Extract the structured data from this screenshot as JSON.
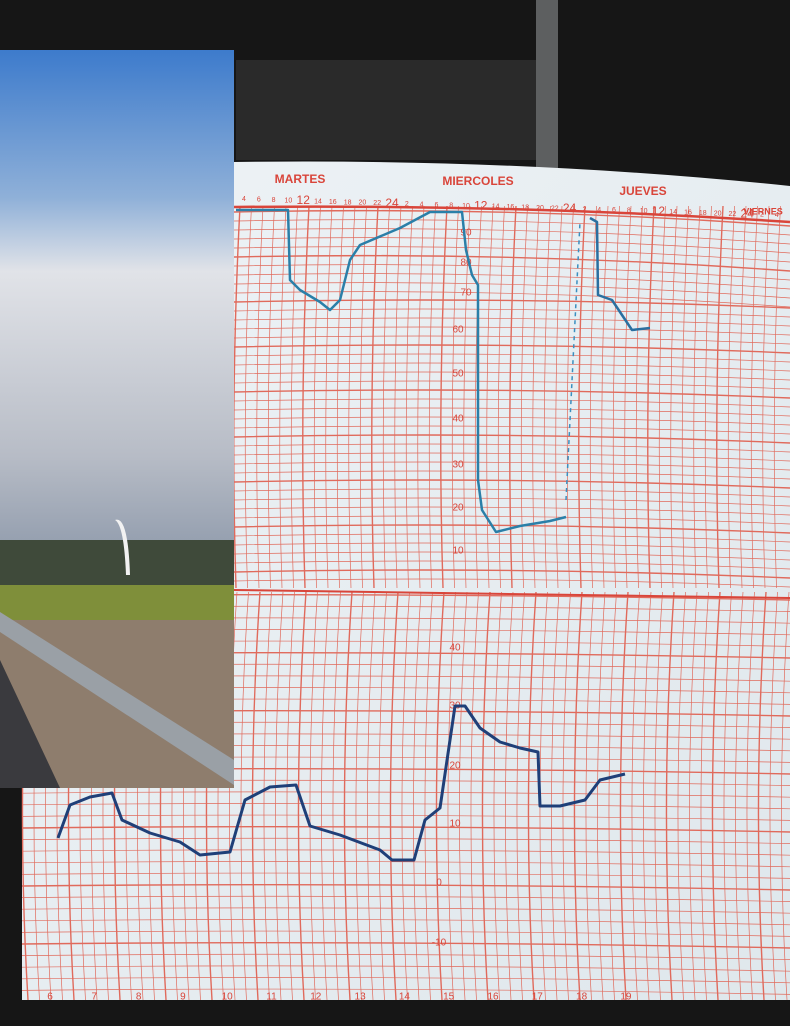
{
  "header": {
    "days": [
      "MARTES",
      "MIERCOLES",
      "JUEVES",
      "VIERNES"
    ],
    "hours": [
      "4",
      "6",
      "8",
      "10",
      "12",
      "14",
      "16",
      "18",
      "20",
      "22",
      "24",
      "2",
      "4",
      "6",
      "8",
      "10",
      "12",
      "14",
      "16",
      "18",
      "20",
      "22",
      "24",
      "2",
      "4",
      "6",
      "8",
      "10",
      "12",
      "14",
      "16",
      "18",
      "20",
      "22",
      "24",
      "2",
      "4"
    ]
  },
  "humidity_scale": [
    "90",
    "80",
    "70",
    "60",
    "50",
    "40",
    "30",
    "20",
    "10"
  ],
  "temperature_scale": [
    "40",
    "30",
    "20",
    "10",
    "0",
    "-10"
  ],
  "bottom_scale": [
    "6",
    "7",
    "8",
    "9",
    "10",
    "11",
    "12",
    "13",
    "14",
    "15",
    "16",
    "17",
    "18",
    "19"
  ]
}
